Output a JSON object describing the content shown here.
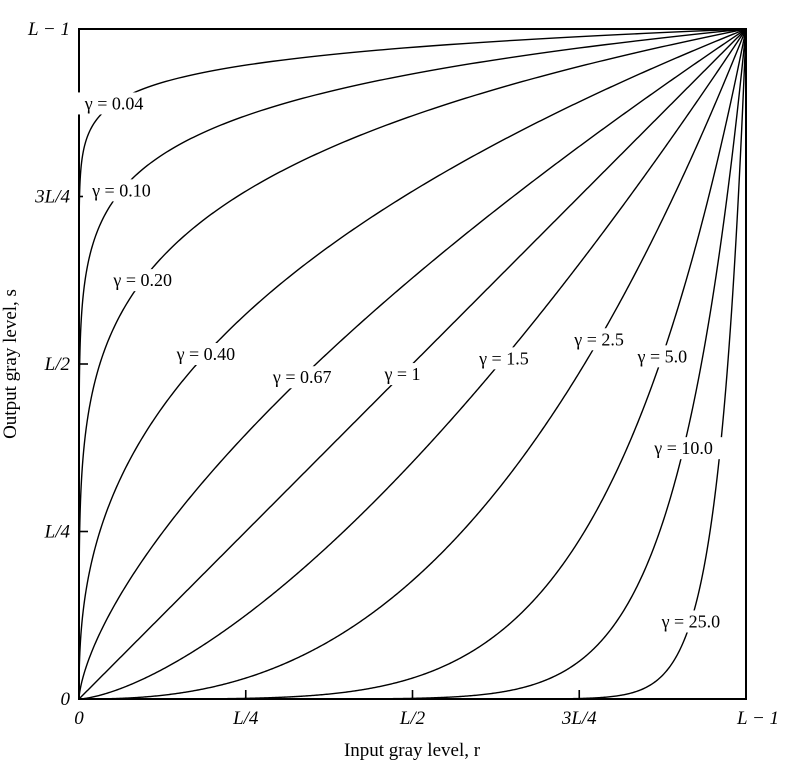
{
  "chart_data": {
    "type": "line",
    "title": "",
    "xlabel": "Input gray level, r",
    "ylabel": "Output gray level, s",
    "xlim": [
      0,
      1
    ],
    "ylim": [
      0,
      1
    ],
    "grid": false,
    "ticks": [
      {
        "value": 0,
        "label": "0"
      },
      {
        "value": 0.25,
        "label": "L/4"
      },
      {
        "value": 0.5,
        "label": "L/2"
      },
      {
        "value": 0.75,
        "label": "3L/4"
      },
      {
        "value": 1,
        "label": "L − 1"
      }
    ],
    "function": "s = r^gamma",
    "series": [
      {
        "gamma": 0.04,
        "label": "γ = 0.04"
      },
      {
        "gamma": 0.1,
        "label": "γ = 0.10"
      },
      {
        "gamma": 0.2,
        "label": "γ = 0.20"
      },
      {
        "gamma": 0.4,
        "label": "γ = 0.40"
      },
      {
        "gamma": 0.67,
        "label": "γ = 0.67"
      },
      {
        "gamma": 1,
        "label": "γ = 1"
      },
      {
        "gamma": 1.5,
        "label": "γ = 1.5"
      },
      {
        "gamma": 2.5,
        "label": "γ = 2.5"
      },
      {
        "gamma": 5.0,
        "label": "γ = 5.0"
      },
      {
        "gamma": 10.0,
        "label": "γ = 10.0"
      },
      {
        "gamma": 25.0,
        "label": "γ = 25.0"
      }
    ]
  }
}
